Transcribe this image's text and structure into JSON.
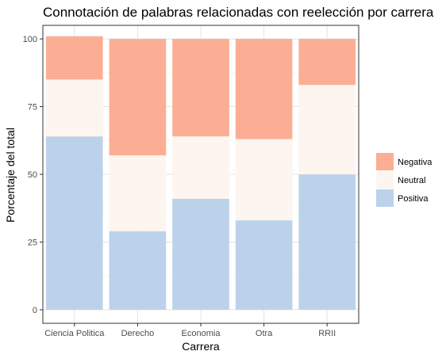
{
  "chart_data": {
    "type": "bar",
    "stacked": true,
    "title": "Connotación de palabras relacionadas con reelección por carrera",
    "xlabel": "Carrera",
    "ylabel": "Porcentaje del total",
    "ylim": [
      0,
      100
    ],
    "yticks": [
      0,
      25,
      50,
      75,
      100
    ],
    "grid": true,
    "legend_position": "right",
    "categories": [
      "Ciencia Politica",
      "Derecho",
      "Economia",
      "Otra",
      "RRII"
    ],
    "series": [
      {
        "name": "Positiva",
        "color": "#bcd2eb",
        "values": [
          64,
          29,
          41,
          33,
          50
        ]
      },
      {
        "name": "Neutral",
        "color": "#fdf5f0",
        "values": [
          21,
          28,
          23,
          30,
          33
        ]
      },
      {
        "name": "Negativa",
        "color": "#fbae93",
        "values": [
          16,
          43,
          36,
          37,
          17
        ]
      }
    ],
    "legend_order": [
      "Negativa",
      "Neutral",
      "Positiva"
    ]
  }
}
